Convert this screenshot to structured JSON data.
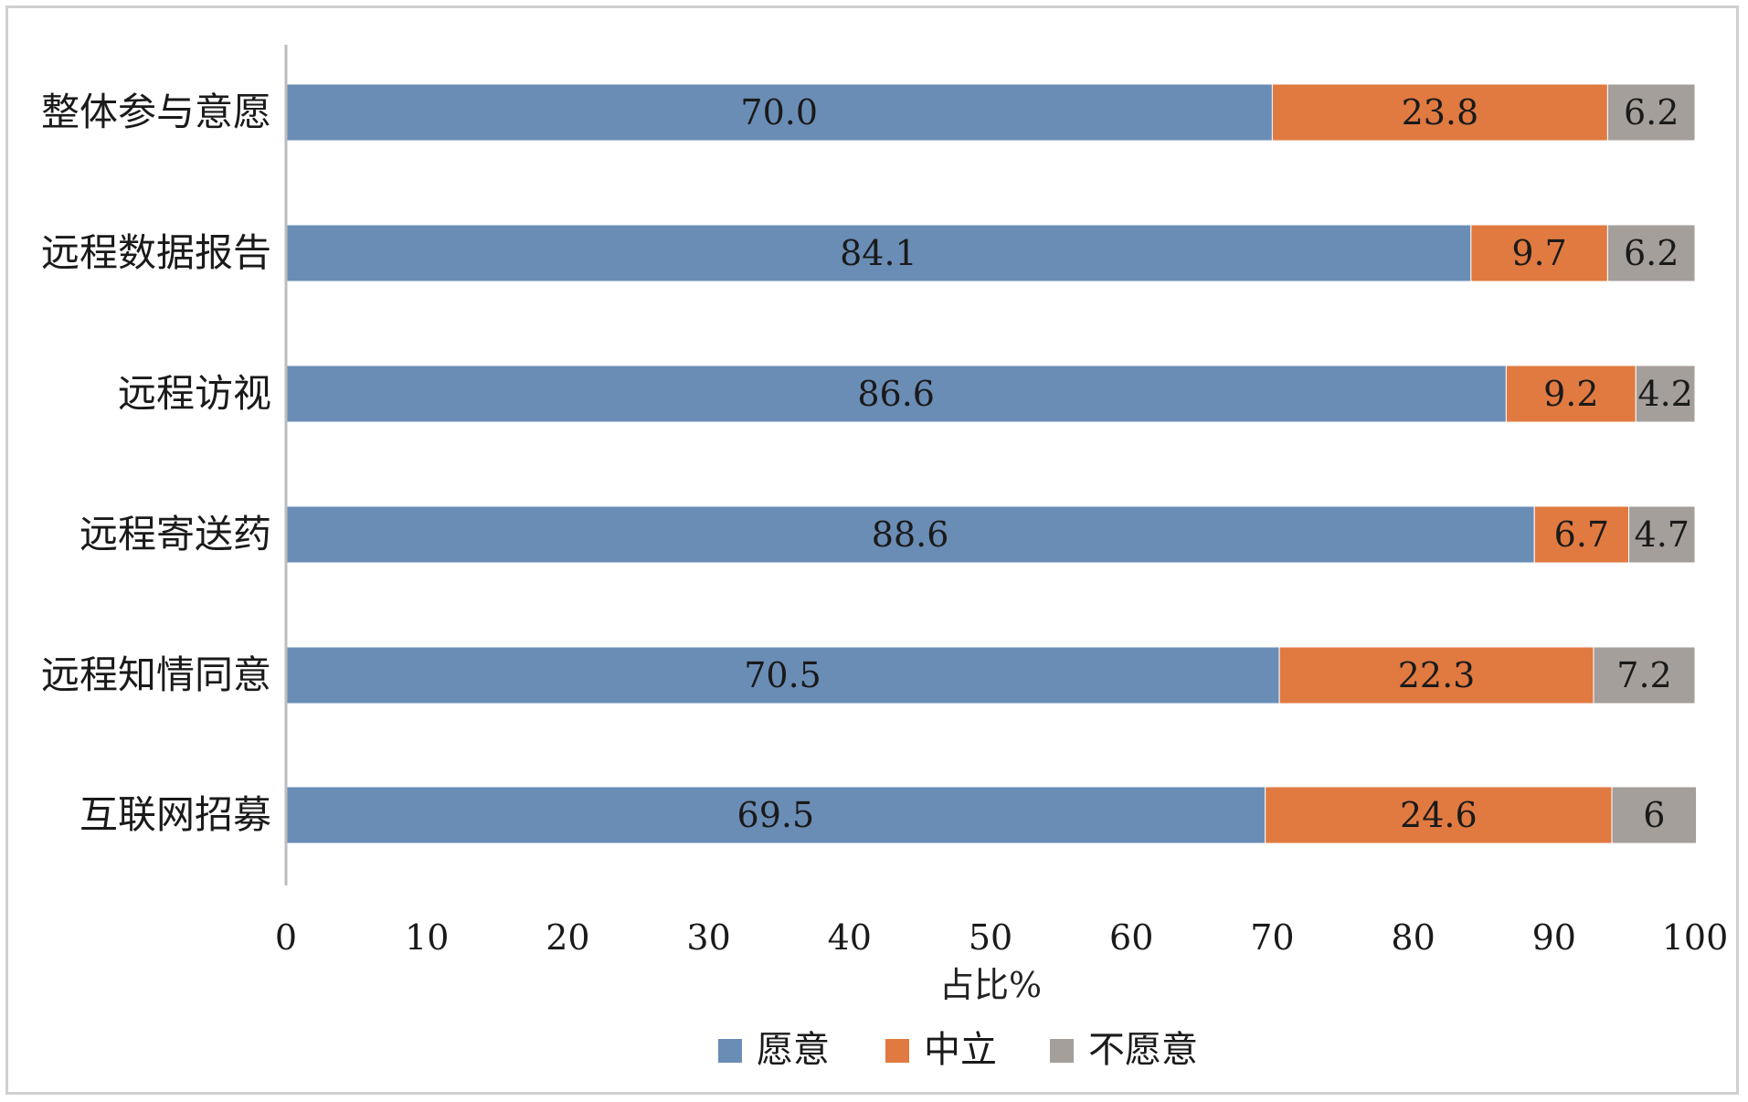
{
  "chart_data": {
    "type": "bar",
    "orientation": "horizontal",
    "stacked": true,
    "categories": [
      "整体参与意愿",
      "远程数据报告",
      "远程访视",
      "远程寄送药",
      "远程知情同意",
      "互联网招募"
    ],
    "series": [
      {
        "name": "愿意",
        "color": "#6a8db6",
        "values": [
          70.0,
          84.1,
          86.6,
          88.6,
          70.5,
          69.5
        ],
        "labels": [
          "70.0",
          "84.1",
          "86.6",
          "88.6",
          "70.5",
          "69.5"
        ]
      },
      {
        "name": "中立",
        "color": "#e07a41",
        "values": [
          23.8,
          9.7,
          9.2,
          6.7,
          22.3,
          24.6
        ],
        "labels": [
          "23.8",
          "9.7",
          "9.2",
          "6.7",
          "22.3",
          "24.6"
        ]
      },
      {
        "name": "不愿意",
        "color": "#a59f9b",
        "values": [
          6.2,
          6.2,
          4.2,
          4.7,
          7.2,
          6
        ],
        "labels": [
          "6.2",
          "6.2",
          "4.2",
          "4.7",
          "7.2",
          "6"
        ]
      }
    ],
    "xlim": [
      0,
      100
    ],
    "xticks": [
      "0",
      "10",
      "20",
      "30",
      "40",
      "50",
      "60",
      "70",
      "80",
      "90",
      "100"
    ],
    "xlabel": "占比%",
    "ylabel": "",
    "title": "",
    "grid": false,
    "legend_position": "bottom"
  }
}
